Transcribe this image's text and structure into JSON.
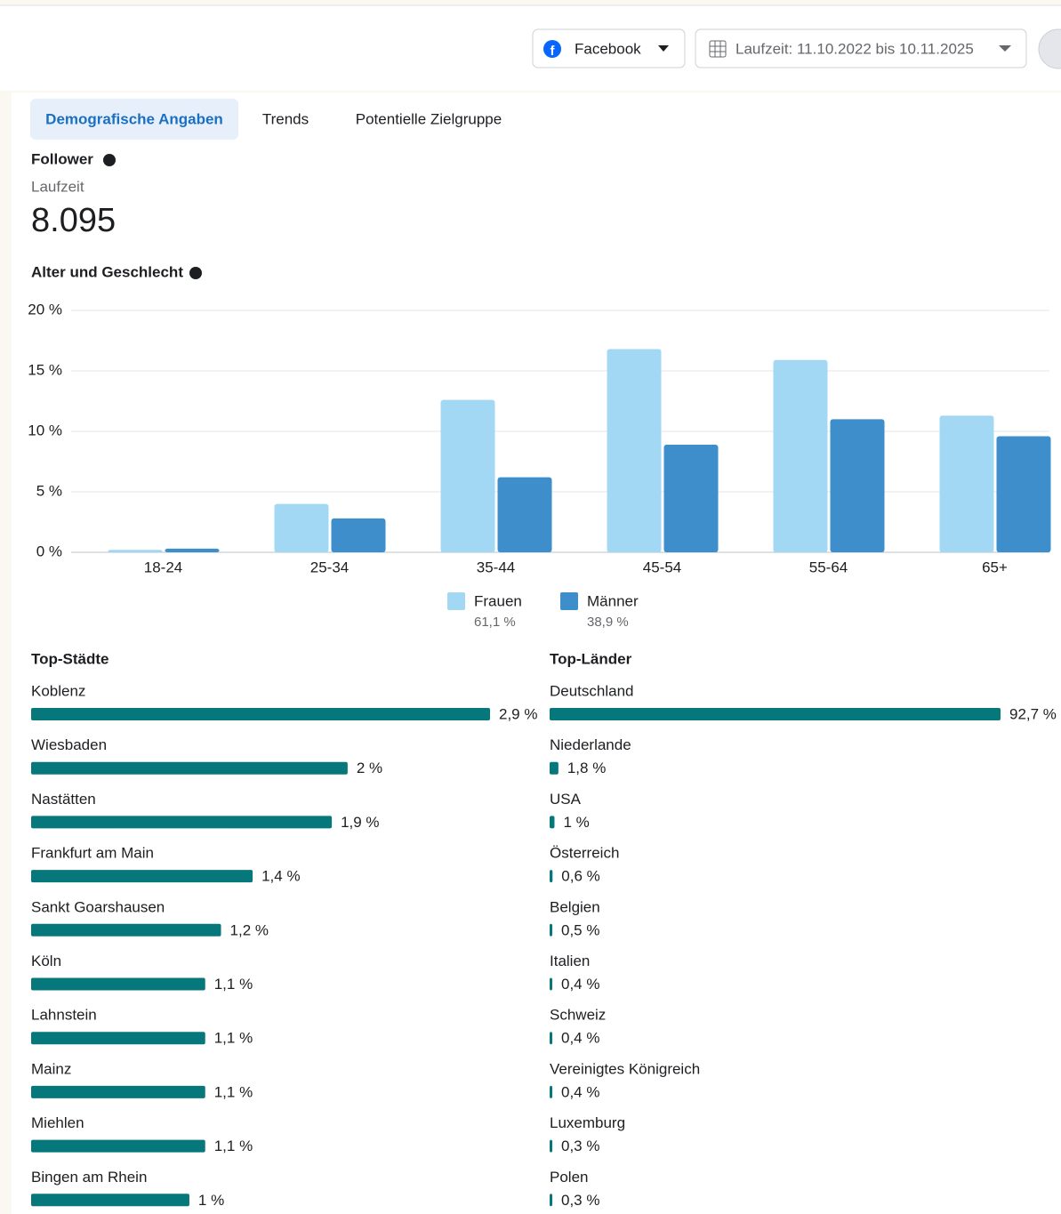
{
  "header": {
    "platform": "Facebook",
    "date_range": "Laufzeit: 11.10.2022 bis 10.11.2025"
  },
  "tabs": [
    "Demografische Angaben",
    "Trends",
    "Potentielle Zielgruppe"
  ],
  "follower": {
    "title": "Follower",
    "sublabel": "Laufzeit",
    "value": "8.095"
  },
  "chart_data": {
    "type": "bar",
    "title": "Alter und Geschlecht",
    "categories": [
      "18-24",
      "25-34",
      "35-44",
      "45-54",
      "55-64",
      "65+"
    ],
    "series": [
      {
        "name": "Frauen",
        "color": "#a3d8f4",
        "share_label": "61,1 %",
        "values": [
          0.2,
          4.0,
          12.6,
          16.8,
          15.9,
          11.3
        ]
      },
      {
        "name": "Männer",
        "color": "#3d8ecb",
        "share_label": "38,9 %",
        "values": [
          0.3,
          2.8,
          6.2,
          8.9,
          11.0,
          9.6
        ]
      }
    ],
    "ylim": [
      0,
      20
    ],
    "yticks": [
      {
        "value": 0,
        "label": "0 %"
      },
      {
        "value": 5,
        "label": "5 %"
      },
      {
        "value": 10,
        "label": "10 %"
      },
      {
        "value": 15,
        "label": "15 %"
      },
      {
        "value": 20,
        "label": "20 %"
      }
    ],
    "grid": true
  },
  "top_cities": {
    "title": "Top-Städte",
    "color": "#06777a",
    "items": [
      {
        "name": "Koblenz",
        "value": 2.9,
        "label": "2,9 %"
      },
      {
        "name": "Wiesbaden",
        "value": 2,
        "label": "2 %"
      },
      {
        "name": "Nastätten",
        "value": 1.9,
        "label": "1,9 %"
      },
      {
        "name": "Frankfurt am Main",
        "value": 1.4,
        "label": "1,4 %"
      },
      {
        "name": "Sankt Goarshausen",
        "value": 1.2,
        "label": "1,2 %"
      },
      {
        "name": "Köln",
        "value": 1.1,
        "label": "1,1 %"
      },
      {
        "name": "Lahnstein",
        "value": 1.1,
        "label": "1,1 %"
      },
      {
        "name": "Mainz",
        "value": 1.1,
        "label": "1,1 %"
      },
      {
        "name": "Miehlen",
        "value": 1.1,
        "label": "1,1 %"
      },
      {
        "name": "Bingen am Rhein",
        "value": 1,
        "label": "1 %"
      }
    ]
  },
  "top_countries": {
    "title": "Top-Länder",
    "color": "#06777a",
    "items": [
      {
        "name": "Deutschland",
        "value": 92.7,
        "label": "92,7 %"
      },
      {
        "name": "Niederlande",
        "value": 1.8,
        "label": "1,8 %"
      },
      {
        "name": "USA",
        "value": 1,
        "label": "1 %"
      },
      {
        "name": "Österreich",
        "value": 0.6,
        "label": "0,6 %"
      },
      {
        "name": "Belgien",
        "value": 0.5,
        "label": "0,5 %"
      },
      {
        "name": "Italien",
        "value": 0.4,
        "label": "0,4 %"
      },
      {
        "name": "Schweiz",
        "value": 0.4,
        "label": "0,4 %"
      },
      {
        "name": "Vereinigtes Königreich",
        "value": 0.4,
        "label": "0,4 %"
      },
      {
        "name": "Luxemburg",
        "value": 0.3,
        "label": "0,3 %"
      },
      {
        "name": "Polen",
        "value": 0.3,
        "label": "0,3 %"
      }
    ]
  }
}
